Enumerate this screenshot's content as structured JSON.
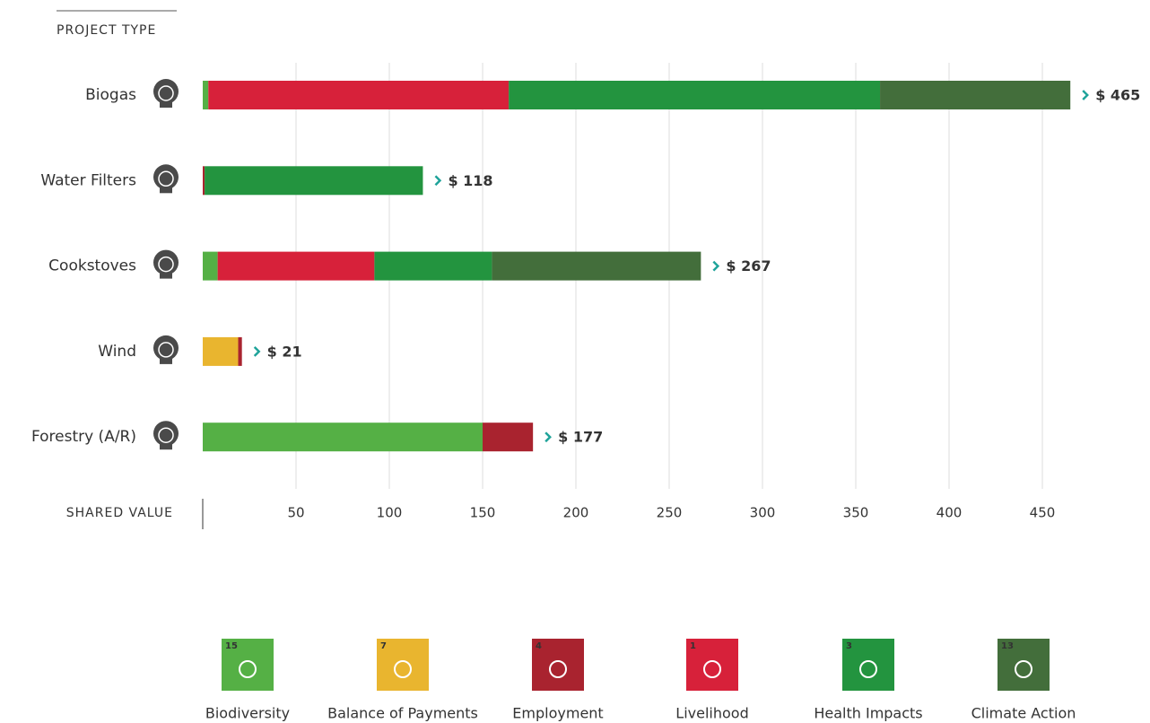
{
  "chart_data": {
    "type": "stacked-barh",
    "y_title": "PROJECT TYPE",
    "x_title": "SHARED VALUE",
    "categories": [
      "Biogas",
      "Water Filters",
      "Cookstoves",
      "Wind",
      "Forestry (A/R)"
    ],
    "total_labels": [
      "$ 465",
      "$ 118",
      "$ 267",
      "$ 21",
      "$ 177"
    ],
    "series": [
      {
        "name": "Biodiversity",
        "sdg": "15",
        "color": "#55b045",
        "values": [
          3,
          0,
          8,
          0,
          150
        ]
      },
      {
        "name": "Balance of Payments",
        "sdg": "7",
        "color": "#e9b52f",
        "values": [
          0,
          0,
          0,
          19,
          0
        ]
      },
      {
        "name": "Employment",
        "sdg": "4",
        "color": "#a9232f",
        "values": [
          0,
          1,
          0,
          2,
          27
        ]
      },
      {
        "name": "Livelihood",
        "sdg": "1",
        "color": "#d7213a",
        "values": [
          161,
          0,
          84,
          0,
          0
        ]
      },
      {
        "name": "Health Impacts",
        "sdg": "3",
        "color": "#23943f",
        "values": [
          199,
          117,
          63,
          0,
          0
        ]
      },
      {
        "name": "Climate Action",
        "sdg": "13",
        "color": "#436e3b",
        "values": [
          102,
          0,
          112,
          0,
          0
        ]
      }
    ],
    "xlim": [
      0,
      450
    ],
    "xticks": [
      50,
      100,
      150,
      200,
      250,
      300,
      350,
      400,
      450
    ],
    "grid": true
  }
}
